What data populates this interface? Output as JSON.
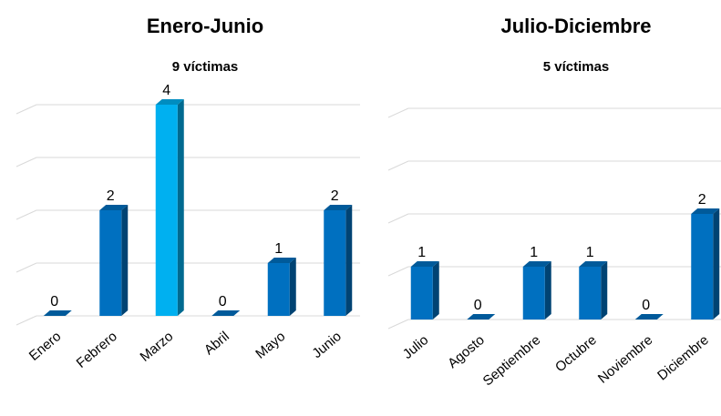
{
  "chart_data": [
    {
      "type": "bar3d",
      "title": "Enero-Junio",
      "subtitle": "9 víctimas",
      "categories": [
        "Enero",
        "Febrero",
        "Marzo",
        "Abril",
        "Mayo",
        "Junio"
      ],
      "values": [
        0,
        2,
        4,
        0,
        1,
        2
      ],
      "colors": [
        "#0070c0",
        "#0070c0",
        "#00b0f0",
        "#0070c0",
        "#0070c0",
        "#0070c0"
      ],
      "ylim": [
        0,
        4
      ],
      "yticks": [
        0,
        1,
        2,
        3,
        4
      ],
      "grid": true
    },
    {
      "type": "bar3d",
      "title": "Julio-Diciembre",
      "subtitle": "5 víctimas",
      "categories": [
        "Julio",
        "Agosto",
        "Septiembre",
        "Octubre",
        "Noviembre",
        "Diciembre"
      ],
      "values": [
        1,
        0,
        1,
        1,
        0,
        2
      ],
      "colors": [
        "#0070c0",
        "#0070c0",
        "#0070c0",
        "#0070c0",
        "#0070c0",
        "#0070c0"
      ],
      "ylim": [
        0,
        4
      ],
      "yticks": [
        0,
        1,
        2,
        3,
        4
      ],
      "grid": true
    }
  ]
}
